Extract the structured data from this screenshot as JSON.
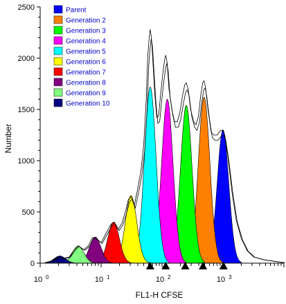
{
  "chart_data": {
    "type": "area",
    "xlabel": "FL1-H CFSE",
    "ylabel": "Number",
    "xscale": "log",
    "xlim": [
      1,
      10000
    ],
    "ylim": [
      0,
      2500
    ],
    "yticks": [
      0,
      500,
      1000,
      1500,
      2000,
      2500
    ],
    "xtick_labels": [
      {
        "base": "10",
        "exp": "0"
      },
      {
        "base": "10",
        "exp": "1"
      },
      {
        "base": "10",
        "exp": "2"
      },
      {
        "base": "10",
        "exp": "3"
      }
    ],
    "legend_position": "top-left",
    "series": [
      {
        "name": "Parent",
        "color": "#0000ff",
        "peak_x": 1000,
        "peak_y": 1300
      },
      {
        "name": "Generation 2",
        "color": "#ff8000",
        "peak_x": 490,
        "peak_y": 1620
      },
      {
        "name": "Generation 3",
        "color": "#00ff00",
        "peak_x": 250,
        "peak_y": 1540
      },
      {
        "name": "Generation 4",
        "color": "#ff00ff",
        "peak_x": 122,
        "peak_y": 1600
      },
      {
        "name": "Generation 5",
        "color": "#00ffff",
        "peak_x": 64,
        "peak_y": 1720
      },
      {
        "name": "Generation 6",
        "color": "#ffff00",
        "peak_x": 31,
        "peak_y": 660
      },
      {
        "name": "Generation 7",
        "color": "#ff0000",
        "peak_x": 16,
        "peak_y": 400
      },
      {
        "name": "Generation 8",
        "color": "#800080",
        "peak_x": 8,
        "peak_y": 255
      },
      {
        "name": "Generation 9",
        "color": "#80ff80",
        "peak_x": 4.2,
        "peak_y": 165
      },
      {
        "name": "Generation 10",
        "color": "#000080",
        "peak_x": 2.1,
        "peak_y": 70
      }
    ],
    "raw_histogram": [
      [
        1.2,
        5
      ],
      [
        1.6,
        25
      ],
      [
        2.0,
        60
      ],
      [
        2.4,
        45
      ],
      [
        3.0,
        60
      ],
      [
        3.6,
        130
      ],
      [
        4.2,
        170
      ],
      [
        5.2,
        130
      ],
      [
        6.2,
        170
      ],
      [
        7.2,
        250
      ],
      [
        8.2,
        245
      ],
      [
        10,
        200
      ],
      [
        12,
        290
      ],
      [
        14.5,
        380
      ],
      [
        16.5,
        400
      ],
      [
        19,
        330
      ],
      [
        22,
        390
      ],
      [
        25,
        500
      ],
      [
        28,
        620
      ],
      [
        31,
        650
      ],
      [
        35,
        560
      ],
      [
        40,
        730
      ],
      [
        45,
        900
      ],
      [
        50,
        1150
      ],
      [
        55,
        1600
      ],
      [
        58,
        2000
      ],
      [
        61,
        2180
      ],
      [
        64,
        2280
      ],
      [
        67,
        2200
      ],
      [
        71,
        1950
      ],
      [
        76,
        1650
      ],
      [
        82,
        1420
      ],
      [
        88,
        1440
      ],
      [
        95,
        1650
      ],
      [
        103,
        1850
      ],
      [
        110,
        1980
      ],
      [
        115,
        2030
      ],
      [
        121,
        1960
      ],
      [
        130,
        1700
      ],
      [
        145,
        1500
      ],
      [
        160,
        1380
      ],
      [
        178,
        1380
      ],
      [
        195,
        1460
      ],
      [
        215,
        1620
      ],
      [
        235,
        1740
      ],
      [
        250,
        1760
      ],
      [
        268,
        1700
      ],
      [
        295,
        1500
      ],
      [
        330,
        1380
      ],
      [
        360,
        1350
      ],
      [
        395,
        1430
      ],
      [
        430,
        1630
      ],
      [
        465,
        1760
      ],
      [
        490,
        1780
      ],
      [
        520,
        1700
      ],
      [
        570,
        1490
      ],
      [
        640,
        1280
      ],
      [
        700,
        1250
      ],
      [
        800,
        1250
      ],
      [
        900,
        1290
      ],
      [
        980,
        1300
      ],
      [
        1070,
        1250
      ],
      [
        1200,
        1040
      ],
      [
        1400,
        700
      ],
      [
        1650,
        420
      ],
      [
        2000,
        240
      ],
      [
        2500,
        120
      ],
      [
        3200,
        60
      ],
      [
        4500,
        35
      ],
      [
        6500,
        20
      ],
      [
        8500,
        10
      ],
      [
        10000,
        5
      ]
    ],
    "gate_markers_x": [
      64,
      115,
      240,
      470,
      1020
    ]
  }
}
